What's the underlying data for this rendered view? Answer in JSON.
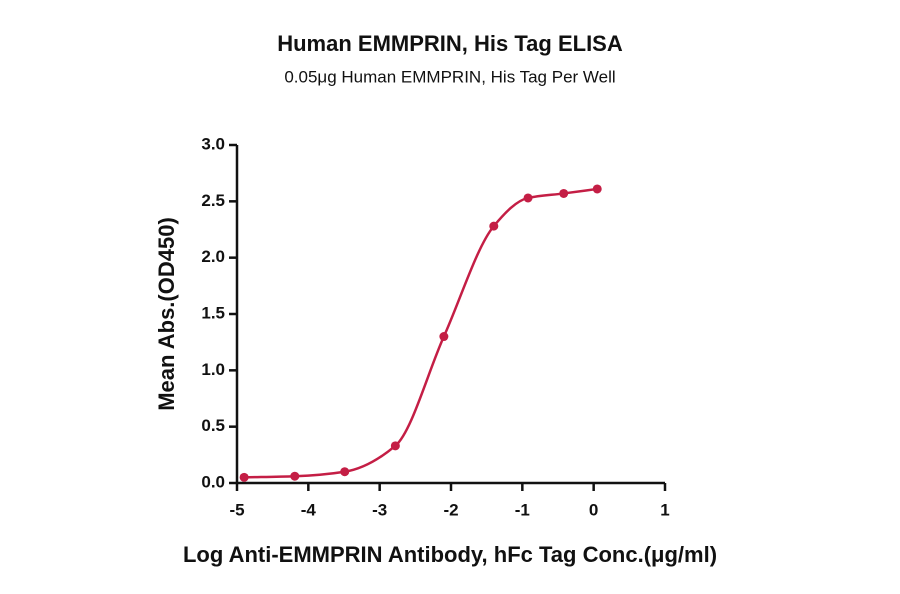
{
  "chart_data": {
    "type": "line",
    "title": "Human EMMPRIN, His Tag ELISA",
    "subtitle": "0.05μg Human EMMPRIN, His Tag Per Well",
    "x_label": "Log Anti-EMMPRIN Antibody, hFc Tag Conc.(μg/ml)",
    "y_label": "Mean Abs.(OD450)",
    "x": [
      -4.9,
      -4.19,
      -3.49,
      -2.78,
      -2.1,
      -1.4,
      -0.92,
      -0.42,
      0.05
    ],
    "series": [
      {
        "color": "#c41e45",
        "values": [
          0.05,
          0.06,
          0.1,
          0.33,
          1.3,
          2.28,
          2.53,
          2.57,
          2.61
        ]
      }
    ],
    "xlim": [
      -5,
      1
    ],
    "xticks": [
      -5,
      -4,
      -3,
      -2,
      -1,
      0,
      1
    ],
    "ylim": [
      0,
      3
    ],
    "yticks": [
      {
        "value": 0,
        "label": "0.0"
      },
      {
        "value": 0.5,
        "label": "0.5"
      },
      {
        "value": 1,
        "label": "1.0"
      },
      {
        "value": 1.5,
        "label": "1.5"
      },
      {
        "value": 2,
        "label": "2.0"
      },
      {
        "value": 2.5,
        "label": "2.5"
      },
      {
        "value": 3,
        "label": "3.0"
      }
    ]
  }
}
